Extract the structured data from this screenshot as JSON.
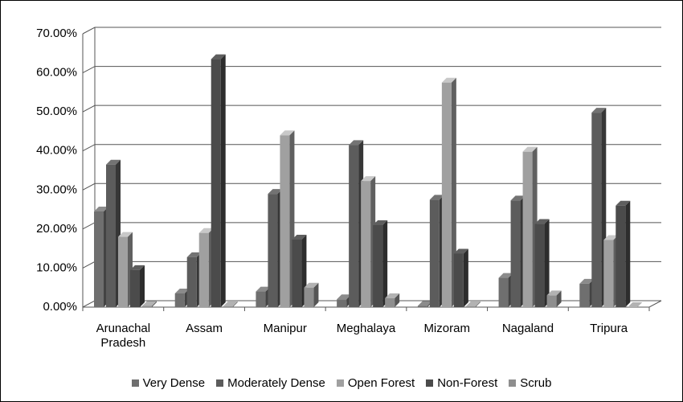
{
  "chart_data": {
    "type": "bar3d",
    "categories": [
      "Arunachal Pradesh",
      "Assam",
      "Manipur",
      "Meghalaya",
      "Mizoram",
      "Nagaland",
      "Tripura"
    ],
    "series": [
      {
        "name": "Very Dense",
        "color": "#6f6f6f",
        "values": [
          24.5,
          3.5,
          4,
          2,
          0.3,
          7.5,
          6
        ]
      },
      {
        "name": "Moderately Dense",
        "color": "#5c5c5c",
        "values": [
          36.5,
          12.8,
          29,
          41.5,
          27.5,
          27.3,
          49.8
        ]
      },
      {
        "name": "Open Forest",
        "color": "#a0a0a0",
        "values": [
          18,
          19,
          44,
          32.3,
          57.5,
          39.8,
          17.2
        ]
      },
      {
        "name": "Non-Forest",
        "color": "#4b4b4b",
        "values": [
          9.5,
          63.5,
          17.3,
          21,
          13.7,
          21.3,
          26
        ]
      },
      {
        "name": "Scrub",
        "color": "#8e8e8e",
        "values": [
          0.3,
          0.2,
          5,
          2.3,
          0.2,
          3,
          0
        ]
      }
    ],
    "ylim": [
      0,
      70
    ],
    "yticks": [
      {
        "value": 0,
        "label": "0.00%"
      },
      {
        "value": 10,
        "label": "10.00%"
      },
      {
        "value": 20,
        "label": "20.00%"
      },
      {
        "value": 30,
        "label": "30.00%"
      },
      {
        "value": 40,
        "label": "40.00%"
      },
      {
        "value": 50,
        "label": "50.00%"
      },
      {
        "value": 60,
        "label": "60.00%"
      },
      {
        "value": 70,
        "label": "70.00%"
      }
    ],
    "grid": true,
    "legend": "bottom"
  }
}
